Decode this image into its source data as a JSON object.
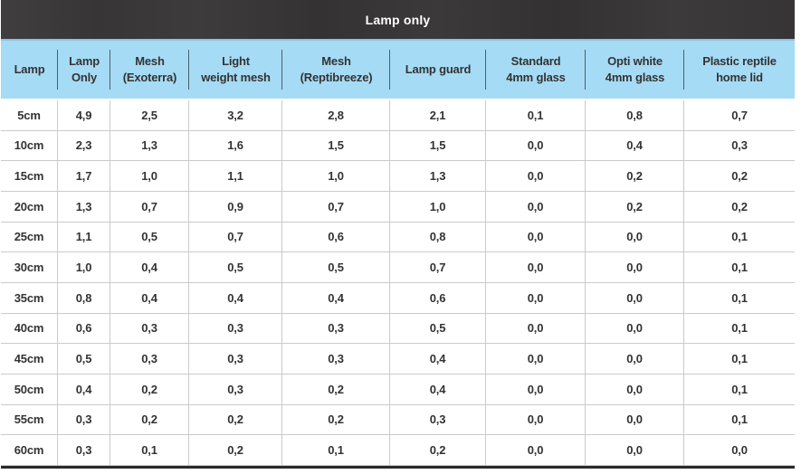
{
  "header": {
    "title": "Lamp only"
  },
  "colors": {
    "title_bg": "#3a3738",
    "title_text": "#ffffff",
    "header_bg": "#a6dbf5",
    "header_text": "#333333",
    "body_text": "#333333",
    "grid_line": "#cbcbcb",
    "header_separator": "#4e5f6b",
    "bottom_border": "#2b292a"
  },
  "chart_data": {
    "type": "table",
    "title": "Lamp only",
    "decimal_separator": ",",
    "columns": [
      "Lamp",
      "Lamp Only",
      "Mesh (Exoterra)",
      "Light weight mesh",
      "Mesh (Reptibreeze)",
      "Lamp guard",
      "Standard 4mm glass",
      "Opti white 4mm glass",
      "Plastic reptile home lid"
    ],
    "column_display": [
      "Lamp",
      "Lamp\nOnly",
      "Mesh\n(Exoterra)",
      "Light\nweight mesh",
      "Mesh\n(Reptibreeze)",
      "Lamp guard",
      "Standard\n4mm glass",
      "Opti white\n4mm glass",
      "Plastic reptile\nhome lid"
    ],
    "rows": [
      {
        "lamp": "5cm",
        "values": [
          "4,9",
          "2,5",
          "3,2",
          "2,8",
          "2,1",
          "0,1",
          "0,8",
          "0,7"
        ]
      },
      {
        "lamp": "10cm",
        "values": [
          "2,3",
          "1,3",
          "1,6",
          "1,5",
          "1,5",
          "0,0",
          "0,4",
          "0,3"
        ]
      },
      {
        "lamp": "15cm",
        "values": [
          "1,7",
          "1,0",
          "1,1",
          "1,0",
          "1,3",
          "0,0",
          "0,2",
          "0,2"
        ]
      },
      {
        "lamp": "20cm",
        "values": [
          "1,3",
          "0,7",
          "0,9",
          "0,7",
          "1,0",
          "0,0",
          "0,2",
          "0,2"
        ]
      },
      {
        "lamp": "25cm",
        "values": [
          "1,1",
          "0,5",
          "0,7",
          "0,6",
          "0,8",
          "0,0",
          "0,0",
          "0,1"
        ]
      },
      {
        "lamp": "30cm",
        "values": [
          "1,0",
          "0,4",
          "0,5",
          "0,5",
          "0,7",
          "0,0",
          "0,0",
          "0,1"
        ]
      },
      {
        "lamp": "35cm",
        "values": [
          "0,8",
          "0,4",
          "0,4",
          "0,4",
          "0,6",
          "0,0",
          "0,0",
          "0,1"
        ]
      },
      {
        "lamp": "40cm",
        "values": [
          "0,6",
          "0,3",
          "0,3",
          "0,3",
          "0,5",
          "0,0",
          "0,0",
          "0,1"
        ]
      },
      {
        "lamp": "45cm",
        "values": [
          "0,5",
          "0,3",
          "0,3",
          "0,3",
          "0,4",
          "0,0",
          "0,0",
          "0,1"
        ]
      },
      {
        "lamp": "50cm",
        "values": [
          "0,4",
          "0,2",
          "0,3",
          "0,2",
          "0,4",
          "0,0",
          "0,0",
          "0,1"
        ]
      },
      {
        "lamp": "55cm",
        "values": [
          "0,3",
          "0,2",
          "0,2",
          "0,2",
          "0,3",
          "0,0",
          "0,0",
          "0,1"
        ]
      },
      {
        "lamp": "60cm",
        "values": [
          "0,3",
          "0,1",
          "0,2",
          "0,1",
          "0,2",
          "0,0",
          "0,0",
          "0,0"
        ]
      }
    ]
  }
}
